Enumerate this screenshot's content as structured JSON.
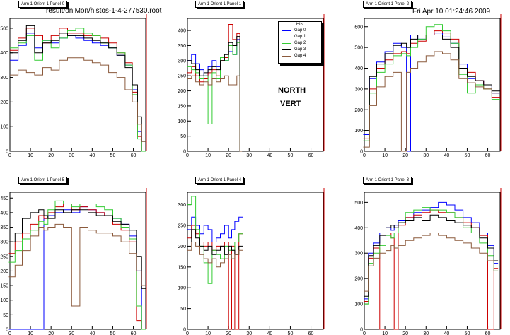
{
  "header": {
    "file_path": "result/onlMon/histos-1-4-277530.root",
    "timestamp": "Fri Apr 10 01:24:46 2009"
  },
  "legend": {
    "title": "Hits",
    "entries": [
      {
        "label": "Gap 0",
        "color": "#0000ff"
      },
      {
        "label": "Gap 1",
        "color": "#cc0000"
      },
      {
        "label": "Gap 2",
        "color": "#33cc33"
      },
      {
        "label": "Gap 3",
        "color": "#000000"
      },
      {
        "label": "Gap 4",
        "color": "#8b5a3c"
      }
    ]
  },
  "annotations": {
    "line1": "NORTH",
    "line2": "VERT"
  },
  "chart_data": [
    {
      "type": "line",
      "title": "Arm 1 Orient 1 Panel 0",
      "xlim": [
        0,
        66
      ],
      "ylim": [
        0,
        540
      ],
      "xticks": [
        0,
        10,
        20,
        30,
        40,
        50,
        60
      ],
      "yticks": [
        0,
        100,
        200,
        300,
        400,
        500
      ],
      "x": [
        2,
        6,
        10,
        14,
        18,
        22,
        26,
        30,
        34,
        38,
        42,
        46,
        50,
        54,
        58,
        61,
        63,
        65
      ],
      "series": [
        {
          "values": [
            370,
            430,
            480,
            420,
            450,
            440,
            460,
            470,
            460,
            450,
            440,
            430,
            420,
            390,
            350,
            250,
            80,
            0
          ]
        },
        {
          "values": [
            410,
            460,
            500,
            470,
            440,
            470,
            500,
            480,
            480,
            470,
            470,
            460,
            440,
            400,
            360,
            240,
            60,
            0
          ]
        },
        {
          "values": [
            420,
            440,
            470,
            370,
            450,
            420,
            460,
            490,
            500,
            480,
            470,
            440,
            420,
            400,
            350,
            230,
            50,
            0
          ]
        },
        {
          "values": [
            400,
            450,
            510,
            400,
            440,
            450,
            480,
            470,
            470,
            460,
            450,
            440,
            420,
            390,
            340,
            270,
            140,
            40
          ]
        },
        {
          "values": [
            310,
            330,
            320,
            310,
            340,
            330,
            370,
            380,
            380,
            370,
            360,
            350,
            320,
            300,
            250,
            200,
            110,
            40
          ]
        }
      ]
    },
    {
      "type": "line",
      "title": "Arm 1 Orient 1 Panel 1",
      "xlim": [
        0,
        66
      ],
      "ylim": [
        0,
        440
      ],
      "xticks": [
        0,
        10,
        20,
        30,
        40,
        50,
        60
      ],
      "yticks": [
        0,
        50,
        100,
        150,
        200,
        250,
        300,
        350,
        400
      ],
      "x": [
        1,
        3,
        5,
        7,
        9,
        11,
        13,
        15,
        17,
        19,
        21,
        23,
        25,
        26
      ],
      "series": [
        {
          "values": [
            300,
            320,
            290,
            270,
            250,
            280,
            300,
            280,
            310,
            300,
            330,
            320,
            370,
            0
          ]
        },
        {
          "values": [
            260,
            280,
            250,
            230,
            240,
            260,
            270,
            250,
            300,
            310,
            420,
            370,
            390,
            0
          ]
        },
        {
          "values": [
            280,
            270,
            260,
            240,
            250,
            90,
            260,
            240,
            310,
            300,
            350,
            320,
            360,
            0
          ]
        },
        {
          "values": [
            300,
            290,
            270,
            250,
            260,
            270,
            280,
            270,
            300,
            320,
            360,
            350,
            380,
            0
          ]
        },
        {
          "values": [
            240,
            250,
            230,
            220,
            230,
            220,
            240,
            230,
            240,
            250,
            220,
            220,
            250,
            0
          ]
        }
      ]
    },
    {
      "type": "line",
      "title": "Arm 1 Orient 1 Panel 2",
      "xlim": [
        0,
        66
      ],
      "ylim": [
        0,
        640
      ],
      "xticks": [
        0,
        10,
        20,
        30,
        40,
        50,
        60
      ],
      "yticks": [
        0,
        100,
        200,
        300,
        400,
        500,
        600
      ],
      "x": [
        1,
        4,
        8,
        12,
        16,
        20,
        21,
        24,
        28,
        32,
        36,
        40,
        44,
        48,
        52,
        56,
        60,
        64
      ],
      "series": [
        {
          "values": [
            80,
            350,
            430,
            480,
            520,
            500,
            0,
            560,
            540,
            560,
            570,
            550,
            520,
            420,
            350,
            340,
            320,
            280
          ]
        },
        {
          "values": [
            60,
            300,
            400,
            440,
            470,
            480,
            470,
            520,
            530,
            560,
            580,
            570,
            540,
            400,
            380,
            340,
            300,
            260
          ]
        },
        {
          "values": [
            50,
            280,
            380,
            420,
            460,
            470,
            460,
            500,
            540,
            600,
            610,
            580,
            520,
            370,
            280,
            320,
            300,
            250
          ]
        },
        {
          "values": [
            100,
            360,
            420,
            470,
            510,
            520,
            500,
            540,
            560,
            560,
            560,
            540,
            500,
            400,
            360,
            340,
            320,
            290
          ]
        },
        {
          "values": [
            20,
            220,
            310,
            360,
            380,
            0,
            380,
            400,
            430,
            460,
            480,
            470,
            440,
            350,
            330,
            310,
            300,
            280
          ]
        }
      ]
    },
    {
      "type": "line",
      "title": "Arm 1 Orient 1 Panel 5",
      "xlim": [
        0,
        66
      ],
      "ylim": [
        0,
        470
      ],
      "xticks": [
        0,
        10,
        20,
        30,
        40,
        50,
        60
      ],
      "yticks": [
        0,
        50,
        100,
        150,
        200,
        250,
        300,
        350,
        400,
        450
      ],
      "x": [
        1,
        4,
        8,
        12,
        16,
        17,
        20,
        24,
        28,
        32,
        36,
        40,
        44,
        48,
        52,
        56,
        60,
        63,
        65
      ],
      "series": [
        {
          "values": [
            0,
            0,
            0,
            0,
            0,
            380,
            390,
            400,
            410,
            400,
            420,
            410,
            400,
            390,
            380,
            360,
            320,
            200,
            0
          ]
        },
        {
          "values": [
            260,
            300,
            330,
            360,
            390,
            380,
            400,
            420,
            430,
            410,
            420,
            410,
            400,
            390,
            360,
            340,
            300,
            30,
            0
          ]
        },
        {
          "values": [
            230,
            270,
            310,
            340,
            370,
            360,
            410,
            440,
            430,
            420,
            430,
            430,
            420,
            410,
            380,
            350,
            310,
            80,
            0
          ]
        },
        {
          "values": [
            300,
            330,
            380,
            400,
            410,
            390,
            380,
            410,
            400,
            410,
            410,
            400,
            390,
            390,
            370,
            360,
            340,
            250,
            140
          ]
        },
        {
          "values": [
            180,
            220,
            270,
            320,
            350,
            340,
            350,
            360,
            350,
            80,
            350,
            340,
            330,
            330,
            320,
            300,
            260,
            200,
            150
          ]
        }
      ]
    },
    {
      "type": "line",
      "title": "Arm 1 Orient 1 Panel 4",
      "xlim": [
        0,
        66
      ],
      "ylim": [
        0,
        330
      ],
      "xticks": [
        0,
        10,
        20,
        30,
        40,
        50,
        60
      ],
      "yticks": [
        0,
        50,
        100,
        150,
        200,
        250,
        300
      ],
      "x": [
        1,
        3,
        5,
        7,
        9,
        11,
        13,
        15,
        17,
        19,
        21,
        22,
        24,
        26
      ],
      "series": [
        {
          "values": [
            240,
            270,
            250,
            230,
            250,
            240,
            210,
            220,
            230,
            250,
            220,
            240,
            260,
            270
          ]
        },
        {
          "values": [
            220,
            250,
            230,
            210,
            200,
            210,
            190,
            200,
            200,
            210,
            0,
            200,
            0,
            230
          ]
        },
        {
          "values": [
            300,
            320,
            240,
            200,
            160,
            110,
            190,
            180,
            170,
            200,
            190,
            190,
            210,
            230
          ]
        },
        {
          "values": [
            210,
            240,
            220,
            200,
            190,
            200,
            180,
            190,
            200,
            180,
            200,
            190,
            180,
            200
          ]
        },
        {
          "values": [
            190,
            210,
            200,
            180,
            170,
            160,
            170,
            150,
            160,
            170,
            180,
            170,
            180,
            190
          ]
        }
      ]
    },
    {
      "type": "line",
      "title": "Arm 1 Orient 1 Panel 3",
      "xlim": [
        0,
        66
      ],
      "ylim": [
        0,
        540
      ],
      "xticks": [
        0,
        10,
        20,
        30,
        40,
        50,
        60
      ],
      "yticks": [
        0,
        100,
        200,
        300,
        400,
        500
      ],
      "x": [
        1,
        3,
        6,
        9,
        12,
        14,
        15,
        18,
        22,
        26,
        30,
        34,
        38,
        42,
        46,
        50,
        54,
        58,
        62,
        64
      ],
      "series": [
        {
          "values": [
            120,
            300,
            340,
            380,
            400,
            390,
            410,
            430,
            440,
            460,
            470,
            480,
            500,
            490,
            470,
            440,
            420,
            380,
            330,
            260
          ]
        },
        {
          "values": [
            110,
            280,
            320,
            0,
            380,
            360,
            0,
            410,
            440,
            450,
            460,
            470,
            460,
            460,
            440,
            420,
            400,
            370,
            0,
            240
          ]
        },
        {
          "values": [
            100,
            260,
            300,
            330,
            370,
            360,
            380,
            420,
            460,
            470,
            480,
            470,
            470,
            460,
            440,
            400,
            380,
            340,
            290,
            230
          ]
        },
        {
          "values": [
            130,
            290,
            330,
            370,
            400,
            410,
            400,
            420,
            430,
            440,
            430,
            450,
            440,
            430,
            420,
            410,
            400,
            360,
            320,
            270
          ]
        },
        {
          "values": [
            150,
            250,
            280,
            300,
            310,
            330,
            320,
            330,
            350,
            360,
            370,
            380,
            370,
            360,
            350,
            340,
            320,
            300,
            270,
            230
          ]
        }
      ]
    }
  ]
}
